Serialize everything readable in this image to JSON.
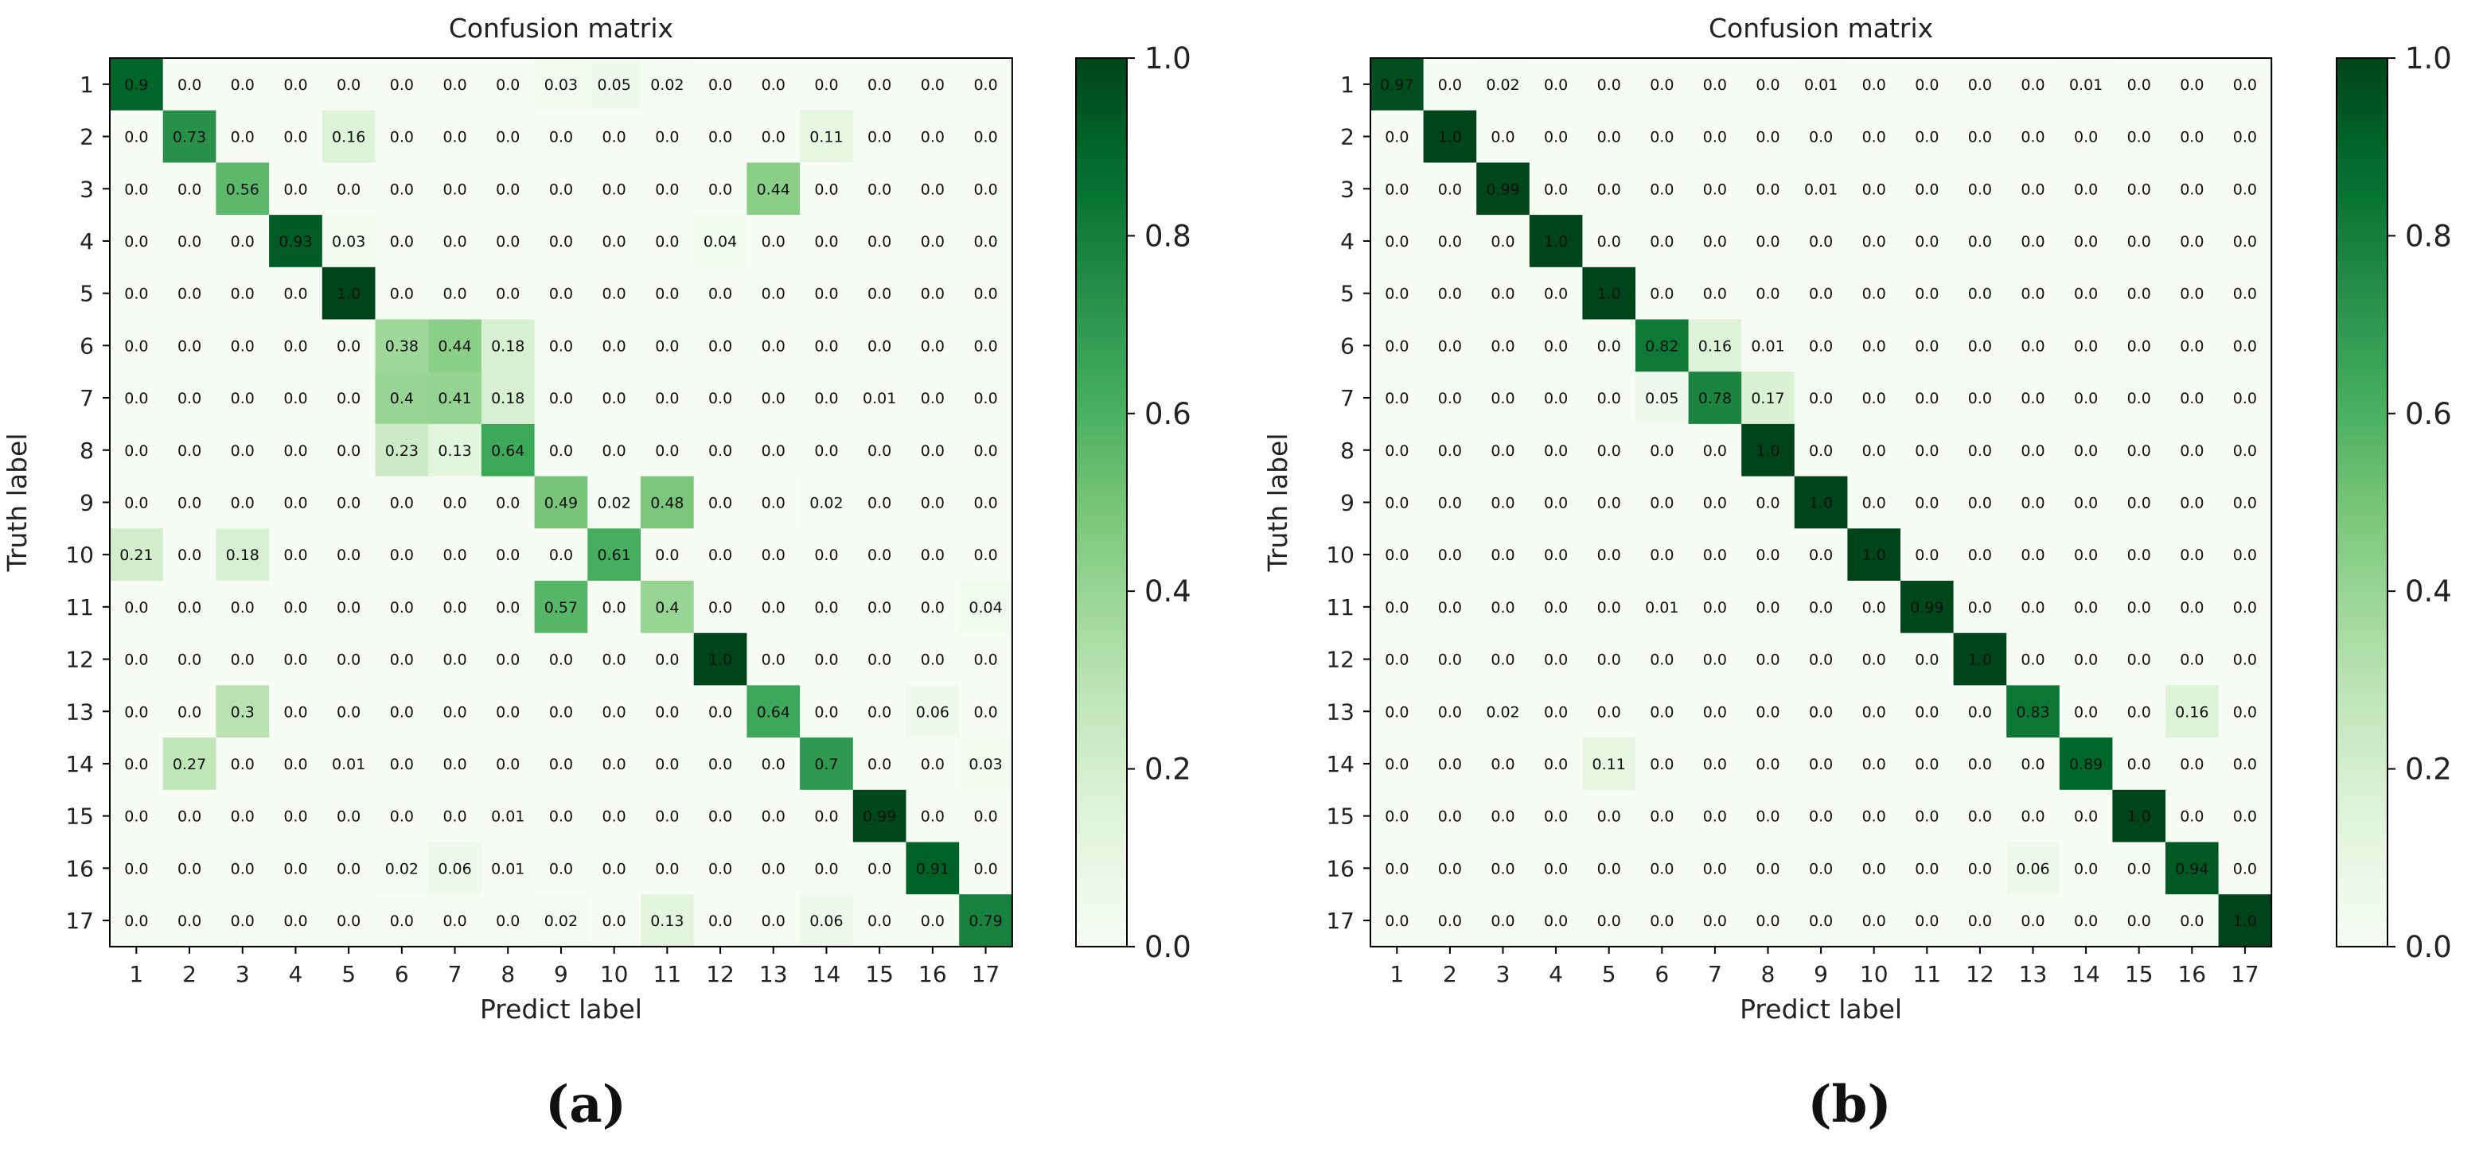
{
  "chart_data": [
    {
      "type": "heatmap",
      "panel_label": "(a)",
      "title": "Confusion matrix",
      "xlabel": "Predict label",
      "ylabel": "Truth label",
      "categories": [
        "1",
        "2",
        "3",
        "4",
        "5",
        "6",
        "7",
        "8",
        "9",
        "10",
        "11",
        "12",
        "13",
        "14",
        "15",
        "16",
        "17"
      ],
      "colorbar": {
        "min": 0.0,
        "max": 1.0,
        "ticks": [
          "0.0",
          "0.2",
          "0.4",
          "0.6",
          "0.8",
          "1.0"
        ],
        "colormap": "Greens"
      },
      "matrix": [
        [
          "0.9",
          "0.0",
          "0.0",
          "0.0",
          "0.0",
          "0.0",
          "0.0",
          "0.0",
          "0.03",
          "0.05",
          "0.02",
          "0.0",
          "0.0",
          "0.0",
          "0.0",
          "0.0",
          "0.0"
        ],
        [
          "0.0",
          "0.73",
          "0.0",
          "0.0",
          "0.16",
          "0.0",
          "0.0",
          "0.0",
          "0.0",
          "0.0",
          "0.0",
          "0.0",
          "0.0",
          "0.11",
          "0.0",
          "0.0",
          "0.0"
        ],
        [
          "0.0",
          "0.0",
          "0.56",
          "0.0",
          "0.0",
          "0.0",
          "0.0",
          "0.0",
          "0.0",
          "0.0",
          "0.0",
          "0.0",
          "0.44",
          "0.0",
          "0.0",
          "0.0",
          "0.0"
        ],
        [
          "0.0",
          "0.0",
          "0.0",
          "0.93",
          "0.03",
          "0.0",
          "0.0",
          "0.0",
          "0.0",
          "0.0",
          "0.0",
          "0.04",
          "0.0",
          "0.0",
          "0.0",
          "0.0",
          "0.0"
        ],
        [
          "0.0",
          "0.0",
          "0.0",
          "0.0",
          "1.0",
          "0.0",
          "0.0",
          "0.0",
          "0.0",
          "0.0",
          "0.0",
          "0.0",
          "0.0",
          "0.0",
          "0.0",
          "0.0",
          "0.0"
        ],
        [
          "0.0",
          "0.0",
          "0.0",
          "0.0",
          "0.0",
          "0.38",
          "0.44",
          "0.18",
          "0.0",
          "0.0",
          "0.0",
          "0.0",
          "0.0",
          "0.0",
          "0.0",
          "0.0",
          "0.0"
        ],
        [
          "0.0",
          "0.0",
          "0.0",
          "0.0",
          "0.0",
          "0.4",
          "0.41",
          "0.18",
          "0.0",
          "0.0",
          "0.0",
          "0.0",
          "0.0",
          "0.0",
          "0.01",
          "0.0",
          "0.0"
        ],
        [
          "0.0",
          "0.0",
          "0.0",
          "0.0",
          "0.0",
          "0.23",
          "0.13",
          "0.64",
          "0.0",
          "0.0",
          "0.0",
          "0.0",
          "0.0",
          "0.0",
          "0.0",
          "0.0",
          "0.0"
        ],
        [
          "0.0",
          "0.0",
          "0.0",
          "0.0",
          "0.0",
          "0.0",
          "0.0",
          "0.0",
          "0.49",
          "0.02",
          "0.48",
          "0.0",
          "0.0",
          "0.02",
          "0.0",
          "0.0",
          "0.0"
        ],
        [
          "0.21",
          "0.0",
          "0.18",
          "0.0",
          "0.0",
          "0.0",
          "0.0",
          "0.0",
          "0.0",
          "0.61",
          "0.0",
          "0.0",
          "0.0",
          "0.0",
          "0.0",
          "0.0",
          "0.0"
        ],
        [
          "0.0",
          "0.0",
          "0.0",
          "0.0",
          "0.0",
          "0.0",
          "0.0",
          "0.0",
          "0.57",
          "0.0",
          "0.4",
          "0.0",
          "0.0",
          "0.0",
          "0.0",
          "0.0",
          "0.04"
        ],
        [
          "0.0",
          "0.0",
          "0.0",
          "0.0",
          "0.0",
          "0.0",
          "0.0",
          "0.0",
          "0.0",
          "0.0",
          "0.0",
          "1.0",
          "0.0",
          "0.0",
          "0.0",
          "0.0",
          "0.0"
        ],
        [
          "0.0",
          "0.0",
          "0.3",
          "0.0",
          "0.0",
          "0.0",
          "0.0",
          "0.0",
          "0.0",
          "0.0",
          "0.0",
          "0.0",
          "0.64",
          "0.0",
          "0.0",
          "0.06",
          "0.0"
        ],
        [
          "0.0",
          "0.27",
          "0.0",
          "0.0",
          "0.01",
          "0.0",
          "0.0",
          "0.0",
          "0.0",
          "0.0",
          "0.0",
          "0.0",
          "0.0",
          "0.7",
          "0.0",
          "0.0",
          "0.03"
        ],
        [
          "0.0",
          "0.0",
          "0.0",
          "0.0",
          "0.0",
          "0.0",
          "0.0",
          "0.01",
          "0.0",
          "0.0",
          "0.0",
          "0.0",
          "0.0",
          "0.0",
          "0.99",
          "0.0",
          "0.0"
        ],
        [
          "0.0",
          "0.0",
          "0.0",
          "0.0",
          "0.0",
          "0.02",
          "0.06",
          "0.01",
          "0.0",
          "0.0",
          "0.0",
          "0.0",
          "0.0",
          "0.0",
          "0.0",
          "0.91",
          "0.0"
        ],
        [
          "0.0",
          "0.0",
          "0.0",
          "0.0",
          "0.0",
          "0.0",
          "0.0",
          "0.0",
          "0.02",
          "0.0",
          "0.13",
          "0.0",
          "0.0",
          "0.06",
          "0.0",
          "0.0",
          "0.79"
        ]
      ]
    },
    {
      "type": "heatmap",
      "panel_label": "(b)",
      "title": "Confusion matrix",
      "xlabel": "Predict label",
      "ylabel": "Truth label",
      "categories": [
        "1",
        "2",
        "3",
        "4",
        "5",
        "6",
        "7",
        "8",
        "9",
        "10",
        "11",
        "12",
        "13",
        "14",
        "15",
        "16",
        "17"
      ],
      "colorbar": {
        "min": 0.0,
        "max": 1.0,
        "ticks": [
          "0.0",
          "0.2",
          "0.4",
          "0.6",
          "0.8",
          "1.0"
        ],
        "colormap": "Greens"
      },
      "matrix": [
        [
          "0.97",
          "0.0",
          "0.02",
          "0.0",
          "0.0",
          "0.0",
          "0.0",
          "0.0",
          "0.01",
          "0.0",
          "0.0",
          "0.0",
          "0.0",
          "0.01",
          "0.0",
          "0.0",
          "0.0"
        ],
        [
          "0.0",
          "1.0",
          "0.0",
          "0.0",
          "0.0",
          "0.0",
          "0.0",
          "0.0",
          "0.0",
          "0.0",
          "0.0",
          "0.0",
          "0.0",
          "0.0",
          "0.0",
          "0.0",
          "0.0"
        ],
        [
          "0.0",
          "0.0",
          "0.99",
          "0.0",
          "0.0",
          "0.0",
          "0.0",
          "0.0",
          "0.01",
          "0.0",
          "0.0",
          "0.0",
          "0.0",
          "0.0",
          "0.0",
          "0.0",
          "0.0"
        ],
        [
          "0.0",
          "0.0",
          "0.0",
          "1.0",
          "0.0",
          "0.0",
          "0.0",
          "0.0",
          "0.0",
          "0.0",
          "0.0",
          "0.0",
          "0.0",
          "0.0",
          "0.0",
          "0.0",
          "0.0"
        ],
        [
          "0.0",
          "0.0",
          "0.0",
          "0.0",
          "1.0",
          "0.0",
          "0.0",
          "0.0",
          "0.0",
          "0.0",
          "0.0",
          "0.0",
          "0.0",
          "0.0",
          "0.0",
          "0.0",
          "0.0"
        ],
        [
          "0.0",
          "0.0",
          "0.0",
          "0.0",
          "0.0",
          "0.82",
          "0.16",
          "0.01",
          "0.0",
          "0.0",
          "0.0",
          "0.0",
          "0.0",
          "0.0",
          "0.0",
          "0.0",
          "0.0"
        ],
        [
          "0.0",
          "0.0",
          "0.0",
          "0.0",
          "0.0",
          "0.05",
          "0.78",
          "0.17",
          "0.0",
          "0.0",
          "0.0",
          "0.0",
          "0.0",
          "0.0",
          "0.0",
          "0.0",
          "0.0"
        ],
        [
          "0.0",
          "0.0",
          "0.0",
          "0.0",
          "0.0",
          "0.0",
          "0.0",
          "1.0",
          "0.0",
          "0.0",
          "0.0",
          "0.0",
          "0.0",
          "0.0",
          "0.0",
          "0.0",
          "0.0"
        ],
        [
          "0.0",
          "0.0",
          "0.0",
          "0.0",
          "0.0",
          "0.0",
          "0.0",
          "0.0",
          "1.0",
          "0.0",
          "0.0",
          "0.0",
          "0.0",
          "0.0",
          "0.0",
          "0.0",
          "0.0"
        ],
        [
          "0.0",
          "0.0",
          "0.0",
          "0.0",
          "0.0",
          "0.0",
          "0.0",
          "0.0",
          "0.0",
          "1.0",
          "0.0",
          "0.0",
          "0.0",
          "0.0",
          "0.0",
          "0.0",
          "0.0"
        ],
        [
          "0.0",
          "0.0",
          "0.0",
          "0.0",
          "0.0",
          "0.01",
          "0.0",
          "0.0",
          "0.0",
          "0.0",
          "0.99",
          "0.0",
          "0.0",
          "0.0",
          "0.0",
          "0.0",
          "0.0"
        ],
        [
          "0.0",
          "0.0",
          "0.0",
          "0.0",
          "0.0",
          "0.0",
          "0.0",
          "0.0",
          "0.0",
          "0.0",
          "0.0",
          "1.0",
          "0.0",
          "0.0",
          "0.0",
          "0.0",
          "0.0"
        ],
        [
          "0.0",
          "0.0",
          "0.02",
          "0.0",
          "0.0",
          "0.0",
          "0.0",
          "0.0",
          "0.0",
          "0.0",
          "0.0",
          "0.0",
          "0.83",
          "0.0",
          "0.0",
          "0.16",
          "0.0"
        ],
        [
          "0.0",
          "0.0",
          "0.0",
          "0.0",
          "0.11",
          "0.0",
          "0.0",
          "0.0",
          "0.0",
          "0.0",
          "0.0",
          "0.0",
          "0.0",
          "0.89",
          "0.0",
          "0.0",
          "0.0"
        ],
        [
          "0.0",
          "0.0",
          "0.0",
          "0.0",
          "0.0",
          "0.0",
          "0.0",
          "0.0",
          "0.0",
          "0.0",
          "0.0",
          "0.0",
          "0.0",
          "0.0",
          "1.0",
          "0.0",
          "0.0"
        ],
        [
          "0.0",
          "0.0",
          "0.0",
          "0.0",
          "0.0",
          "0.0",
          "0.0",
          "0.0",
          "0.0",
          "0.0",
          "0.0",
          "0.0",
          "0.06",
          "0.0",
          "0.0",
          "0.94",
          "0.0"
        ],
        [
          "0.0",
          "0.0",
          "0.0",
          "0.0",
          "0.0",
          "0.0",
          "0.0",
          "0.0",
          "0.0",
          "0.0",
          "0.0",
          "0.0",
          "0.0",
          "0.0",
          "0.0",
          "0.0",
          "1.0"
        ]
      ]
    }
  ]
}
